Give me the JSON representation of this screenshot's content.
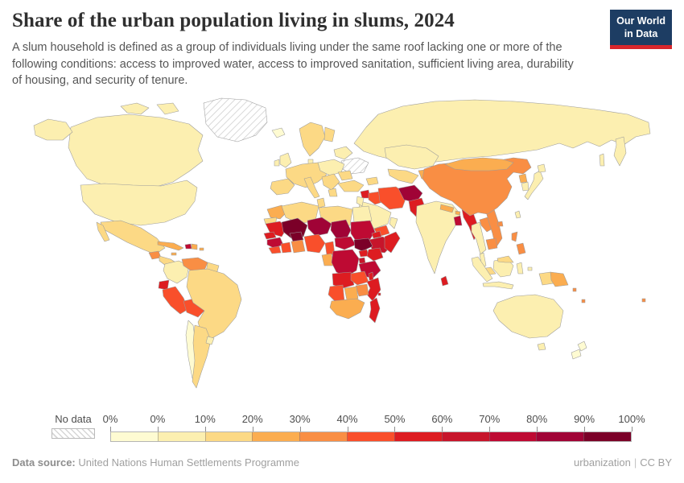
{
  "header": {
    "title": "Share of the urban population living in slums, 2024",
    "subtitle": "A slum household is defined as a group of individuals living under the same roof lacking one or more of the following conditions: access to improved water, access to improved sanitation, sufficient living area, durability of housing, and security of tenure.",
    "logo": {
      "line1": "Our World",
      "line2": "in Data",
      "bg_color": "#1d3d63",
      "accent_color": "#d8262c"
    }
  },
  "legend": {
    "no_data_label": "No data",
    "tick_labels": [
      "0%",
      "0%",
      "10%",
      "20%",
      "30%",
      "40%",
      "50%",
      "60%",
      "70%",
      "80%",
      "90%",
      "100%"
    ],
    "bin_colors": [
      "#FEFBD2",
      "#FCEFB0",
      "#FCD985",
      "#FBAD50",
      "#F98E44",
      "#F94F2B",
      "#DD1C21",
      "#C7152B",
      "#BE0A33",
      "#A00336",
      "#7B0028"
    ]
  },
  "footer": {
    "datasource_label": "Data source:",
    "datasource_value": "United Nations Human Settlements Programme",
    "link_label": "urbanization",
    "separator": "|",
    "license": "CC BY"
  },
  "chart_data": {
    "type": "choropleth",
    "title": "Share of the urban population living in slums",
    "year": 2024,
    "unit": "% of urban population living in slum households",
    "legend_bins": [
      {
        "range": "0%",
        "color": "#FEFBD2"
      },
      {
        "range": "0–10%",
        "color": "#FCEFB0"
      },
      {
        "range": "10–20%",
        "color": "#FCD985"
      },
      {
        "range": "20–30%",
        "color": "#FBAD50"
      },
      {
        "range": "30–40%",
        "color": "#F98E44"
      },
      {
        "range": "40–50%",
        "color": "#F94F2B"
      },
      {
        "range": "50–60%",
        "color": "#DD1C21"
      },
      {
        "range": "60–70%",
        "color": "#C7152B"
      },
      {
        "range": "70–80%",
        "color": "#BE0A33"
      },
      {
        "range": "80–90%",
        "color": "#A00336"
      },
      {
        "range": "90–100%",
        "color": "#7B0028"
      }
    ],
    "no_data_regions": [
      "Greenland",
      "Ukraine"
    ],
    "regions": [
      {
        "id": "greenland",
        "name": "Greenland",
        "bin": -1,
        "value": "No data"
      },
      {
        "id": "ukraine",
        "name": "Ukraine",
        "bin": -1,
        "value": "No data"
      },
      {
        "id": "canada",
        "name": "Canada",
        "bin": 1,
        "value": "0–10%"
      },
      {
        "id": "united-states",
        "name": "United States",
        "bin": 1,
        "value": "0–10%"
      },
      {
        "id": "iceland",
        "name": "Iceland",
        "bin": 0,
        "value": "0%"
      },
      {
        "id": "mexico",
        "name": "Mexico",
        "bin": 2,
        "value": "10–20%"
      },
      {
        "id": "guatemala",
        "name": "Guatemala",
        "bin": 4,
        "value": "30–40%"
      },
      {
        "id": "central-america",
        "name": "Honduras & Nicaragua",
        "bin": 2,
        "value": "10–20%"
      },
      {
        "id": "cuba",
        "name": "Cuba",
        "bin": 3,
        "value": "20–30%"
      },
      {
        "id": "jamaica",
        "name": "Jamaica",
        "bin": 3,
        "value": "20–30%"
      },
      {
        "id": "haiti",
        "name": "Haiti",
        "bin": 8,
        "value": "70–80%"
      },
      {
        "id": "dominican-republic",
        "name": "Dominican Republic",
        "bin": 3,
        "value": "20–30%"
      },
      {
        "id": "puerto-rico",
        "name": "Puerto Rico",
        "bin": 3,
        "value": "20–30%"
      },
      {
        "id": "colombia",
        "name": "Colombia",
        "bin": 1,
        "value": "0–10%"
      },
      {
        "id": "venezuela",
        "name": "Venezuela",
        "bin": 4,
        "value": "30–40%"
      },
      {
        "id": "guyanas",
        "name": "Guyana & Suriname",
        "bin": 2,
        "value": "10–20%"
      },
      {
        "id": "ecuador",
        "name": "Ecuador",
        "bin": 6,
        "value": "50–60%"
      },
      {
        "id": "peru",
        "name": "Peru",
        "bin": 5,
        "value": "40–50%"
      },
      {
        "id": "bolivia",
        "name": "Bolivia",
        "bin": 5,
        "value": "40–50%"
      },
      {
        "id": "brazil",
        "name": "Brazil",
        "bin": 2,
        "value": "10–20%"
      },
      {
        "id": "chile",
        "name": "Chile",
        "bin": 0,
        "value": "0%"
      },
      {
        "id": "argentina",
        "name": "Argentina",
        "bin": 2,
        "value": "10–20%"
      },
      {
        "id": "uruguay",
        "name": "Uruguay",
        "bin": 1,
        "value": "0–10%"
      },
      {
        "id": "united-kingdom",
        "name": "United Kingdom",
        "bin": 1,
        "value": "0–10%"
      },
      {
        "id": "ireland",
        "name": "Ireland",
        "bin": 1,
        "value": "0–10%"
      },
      {
        "id": "norway-sweden",
        "name": "Norway & Sweden",
        "bin": 2,
        "value": "10–20%"
      },
      {
        "id": "finland",
        "name": "Finland",
        "bin": 2,
        "value": "10–20%"
      },
      {
        "id": "denmark",
        "name": "Denmark",
        "bin": 1,
        "value": "0–10%"
      },
      {
        "id": "western-europe",
        "name": "France & Germany",
        "bin": 2,
        "value": "10–20%"
      },
      {
        "id": "iberia",
        "name": "Spain & Portugal",
        "bin": 2,
        "value": "10–20%"
      },
      {
        "id": "italy",
        "name": "Italy",
        "bin": 2,
        "value": "10–20%"
      },
      {
        "id": "central-europe",
        "name": "Poland",
        "bin": 1,
        "value": "0–10%"
      },
      {
        "id": "balkans",
        "name": "Balkans",
        "bin": 2,
        "value": "10–20%"
      },
      {
        "id": "greece",
        "name": "Greece",
        "bin": 2,
        "value": "10–20%"
      },
      {
        "id": "belarus-baltics",
        "name": "Belarus & Baltics",
        "bin": 1,
        "value": "0–10%"
      },
      {
        "id": "romania",
        "name": "Romania",
        "bin": 2,
        "value": "10–20%"
      },
      {
        "id": "russia",
        "name": "Russia",
        "bin": 1,
        "value": "0–10%"
      },
      {
        "id": "turkey",
        "name": "Turkey",
        "bin": 2,
        "value": "10–20%"
      },
      {
        "id": "caucasus",
        "name": "Caucasus",
        "bin": 2,
        "value": "10–20%"
      },
      {
        "id": "syria",
        "name": "Syria",
        "bin": 6,
        "value": "50–60%"
      },
      {
        "id": "iraq",
        "name": "Iraq",
        "bin": 5,
        "value": "40–50%"
      },
      {
        "id": "iran",
        "name": "Iran",
        "bin": 5,
        "value": "40–50%"
      },
      {
        "id": "saudi-arabia",
        "name": "Saudi Arabia",
        "bin": 1,
        "value": "0–10%"
      },
      {
        "id": "yemen",
        "name": "Yemen",
        "bin": 5,
        "value": "40–50%"
      },
      {
        "id": "oman",
        "name": "Oman",
        "bin": 1,
        "value": "0–10%"
      },
      {
        "id": "israel-jordan",
        "name": "Israel & Jordan",
        "bin": 1,
        "value": "0–10%"
      },
      {
        "id": "kazakhstan",
        "name": "Kazakhstan",
        "bin": 1,
        "value": "0–10%"
      },
      {
        "id": "uzbekistan-turkmenistan",
        "name": "Uzbekistan & Turkmenistan",
        "bin": 2,
        "value": "10–20%"
      },
      {
        "id": "kyrgyzstan-tajikistan",
        "name": "Kyrgyzstan & Tajikistan",
        "bin": 3,
        "value": "20–30%"
      },
      {
        "id": "afghanistan",
        "name": "Afghanistan",
        "bin": 9,
        "value": "80–90%"
      },
      {
        "id": "pakistan",
        "name": "Pakistan",
        "bin": 6,
        "value": "50–60%"
      },
      {
        "id": "india",
        "name": "India",
        "bin": 1,
        "value": "0–10%"
      },
      {
        "id": "nepal",
        "name": "Nepal",
        "bin": 3,
        "value": "20–30%"
      },
      {
        "id": "bhutan",
        "name": "Bhutan",
        "bin": 3,
        "value": "20–30%"
      },
      {
        "id": "bangladesh",
        "name": "Bangladesh",
        "bin": 8,
        "value": "70–80%"
      },
      {
        "id": "sri-lanka",
        "name": "Sri Lanka",
        "bin": 6,
        "value": "50–60%"
      },
      {
        "id": "myanmar",
        "name": "Myanmar",
        "bin": 6,
        "value": "50–60%"
      },
      {
        "id": "thailand",
        "name": "Thailand",
        "bin": 1,
        "value": "0–10%"
      },
      {
        "id": "laos",
        "name": "Laos",
        "bin": 4,
        "value": "30–40%"
      },
      {
        "id": "vietnam",
        "name": "Vietnam",
        "bin": 4,
        "value": "30–40%"
      },
      {
        "id": "cambodia",
        "name": "Cambodia",
        "bin": 4,
        "value": "30–40%"
      },
      {
        "id": "malaysia",
        "name": "Malaysia",
        "bin": 2,
        "value": "10–20%"
      },
      {
        "id": "china",
        "name": "China",
        "bin": 4,
        "value": "30–40%"
      },
      {
        "id": "taiwan",
        "name": "Taiwan",
        "bin": 1,
        "value": "0–10%"
      },
      {
        "id": "mongolia",
        "name": "Mongolia",
        "bin": 3,
        "value": "20–30%"
      },
      {
        "id": "north-korea",
        "name": "North Korea",
        "bin": 3,
        "value": "20–30%"
      },
      {
        "id": "south-korea",
        "name": "South Korea",
        "bin": 1,
        "value": "0–10%"
      },
      {
        "id": "japan",
        "name": "Japan",
        "bin": 1,
        "value": "0–10%"
      },
      {
        "id": "philippines",
        "name": "Philippines",
        "bin": 4,
        "value": "30–40%"
      },
      {
        "id": "indonesia",
        "name": "Indonesia",
        "bin": 1,
        "value": "0–10%"
      },
      {
        "id": "malaysia-borneo",
        "name": "Malaysia (Borneo)",
        "bin": 2,
        "value": "10–20%"
      },
      {
        "id": "west-papua",
        "name": "Indonesia (Papua)",
        "bin": 2,
        "value": "10–20%"
      },
      {
        "id": "papua-new-guinea",
        "name": "Papua New Guinea",
        "bin": 3,
        "value": "20–30%"
      },
      {
        "id": "solomon-islands",
        "name": "Solomon Islands",
        "bin": 4,
        "value": "30–40%"
      },
      {
        "id": "vanuatu",
        "name": "Vanuatu",
        "bin": 4,
        "value": "30–40%"
      },
      {
        "id": "fiji",
        "name": "Fiji",
        "bin": 4,
        "value": "30–40%"
      },
      {
        "id": "australia",
        "name": "Australia",
        "bin": 1,
        "value": "0–10%"
      },
      {
        "id": "new-zealand",
        "name": "New Zealand",
        "bin": 0,
        "value": "0%"
      },
      {
        "id": "morocco",
        "name": "Morocco",
        "bin": 3,
        "value": "20–30%"
      },
      {
        "id": "western-sahara",
        "name": "Western Sahara",
        "bin": 2,
        "value": "10–20%"
      },
      {
        "id": "algeria",
        "name": "Algeria",
        "bin": 2,
        "value": "10–20%"
      },
      {
        "id": "tunisia",
        "name": "Tunisia",
        "bin": 2,
        "value": "10–20%"
      },
      {
        "id": "libya",
        "name": "Libya",
        "bin": 2,
        "value": "10–20%"
      },
      {
        "id": "egypt",
        "name": "Egypt",
        "bin": 1,
        "value": "0–10%"
      },
      {
        "id": "mauritania",
        "name": "Mauritania",
        "bin": 6,
        "value": "50–60%"
      },
      {
        "id": "mali",
        "name": "Mali",
        "bin": 10,
        "value": "90–100%"
      },
      {
        "id": "niger",
        "name": "Niger",
        "bin": 9,
        "value": "80–90%"
      },
      {
        "id": "chad",
        "name": "Chad",
        "bin": 9,
        "value": "80–90%"
      },
      {
        "id": "sudan",
        "name": "Sudan",
        "bin": 8,
        "value": "70–80%"
      },
      {
        "id": "eritrea",
        "name": "Eritrea",
        "bin": 6,
        "value": "50–60%"
      },
      {
        "id": "ethiopia",
        "name": "Ethiopia",
        "bin": 7,
        "value": "60–70%"
      },
      {
        "id": "somalia",
        "name": "Somalia",
        "bin": 6,
        "value": "50–60%"
      },
      {
        "id": "senegal",
        "name": "Senegal",
        "bin": 6,
        "value": "50–60%"
      },
      {
        "id": "guinea",
        "name": "Guinea",
        "bin": 8,
        "value": "70–80%"
      },
      {
        "id": "sierra-leone-liberia",
        "name": "Sierra Leone & Liberia",
        "bin": 5,
        "value": "40–50%"
      },
      {
        "id": "ivory-coast",
        "name": "Côte d'Ivoire",
        "bin": 5,
        "value": "40–50%"
      },
      {
        "id": "burkina-faso",
        "name": "Burkina Faso",
        "bin": 10,
        "value": "90–100%"
      },
      {
        "id": "ghana-togo-benin",
        "name": "Ghana, Togo & Benin",
        "bin": 4,
        "value": "30–40%"
      },
      {
        "id": "nigeria",
        "name": "Nigeria",
        "bin": 5,
        "value": "40–50%"
      },
      {
        "id": "cameroon",
        "name": "Cameroon",
        "bin": 5,
        "value": "40–50%"
      },
      {
        "id": "central-african-republic",
        "name": "Central African Republic",
        "bin": 8,
        "value": "70–80%"
      },
      {
        "id": "south-sudan",
        "name": "South Sudan",
        "bin": 10,
        "value": "90–100%"
      },
      {
        "id": "gabon-congo",
        "name": "Gabon & Congo",
        "bin": 3,
        "value": "20–30%"
      },
      {
        "id": "dr-congo",
        "name": "Democratic Republic of Congo",
        "bin": 8,
        "value": "70–80%"
      },
      {
        "id": "uganda",
        "name": "Uganda",
        "bin": 6,
        "value": "50–60%"
      },
      {
        "id": "kenya",
        "name": "Kenya",
        "bin": 6,
        "value": "50–60%"
      },
      {
        "id": "rwanda-burundi",
        "name": "Rwanda & Burundi",
        "bin": 7,
        "value": "60–70%"
      },
      {
        "id": "tanzania",
        "name": "Tanzania",
        "bin": 8,
        "value": "70–80%"
      },
      {
        "id": "angola",
        "name": "Angola",
        "bin": 6,
        "value": "50–60%"
      },
      {
        "id": "zambia",
        "name": "Zambia",
        "bin": 5,
        "value": "40–50%"
      },
      {
        "id": "malawi",
        "name": "Malawi",
        "bin": 6,
        "value": "50–60%"
      },
      {
        "id": "mozambique",
        "name": "Mozambique",
        "bin": 6,
        "value": "50–60%"
      },
      {
        "id": "zimbabwe",
        "name": "Zimbabwe",
        "bin": 4,
        "value": "30–40%"
      },
      {
        "id": "namibia",
        "name": "Namibia",
        "bin": 5,
        "value": "40–50%"
      },
      {
        "id": "botswana",
        "name": "Botswana",
        "bin": 3,
        "value": "20–30%"
      },
      {
        "id": "south-africa",
        "name": "South Africa",
        "bin": 3,
        "value": "20–30%"
      },
      {
        "id": "madagascar",
        "name": "Madagascar",
        "bin": 6,
        "value": "50–60%"
      },
      {
        "id": "comoros",
        "name": "Comoros",
        "bin": 6,
        "value": "50–60%"
      }
    ]
  }
}
